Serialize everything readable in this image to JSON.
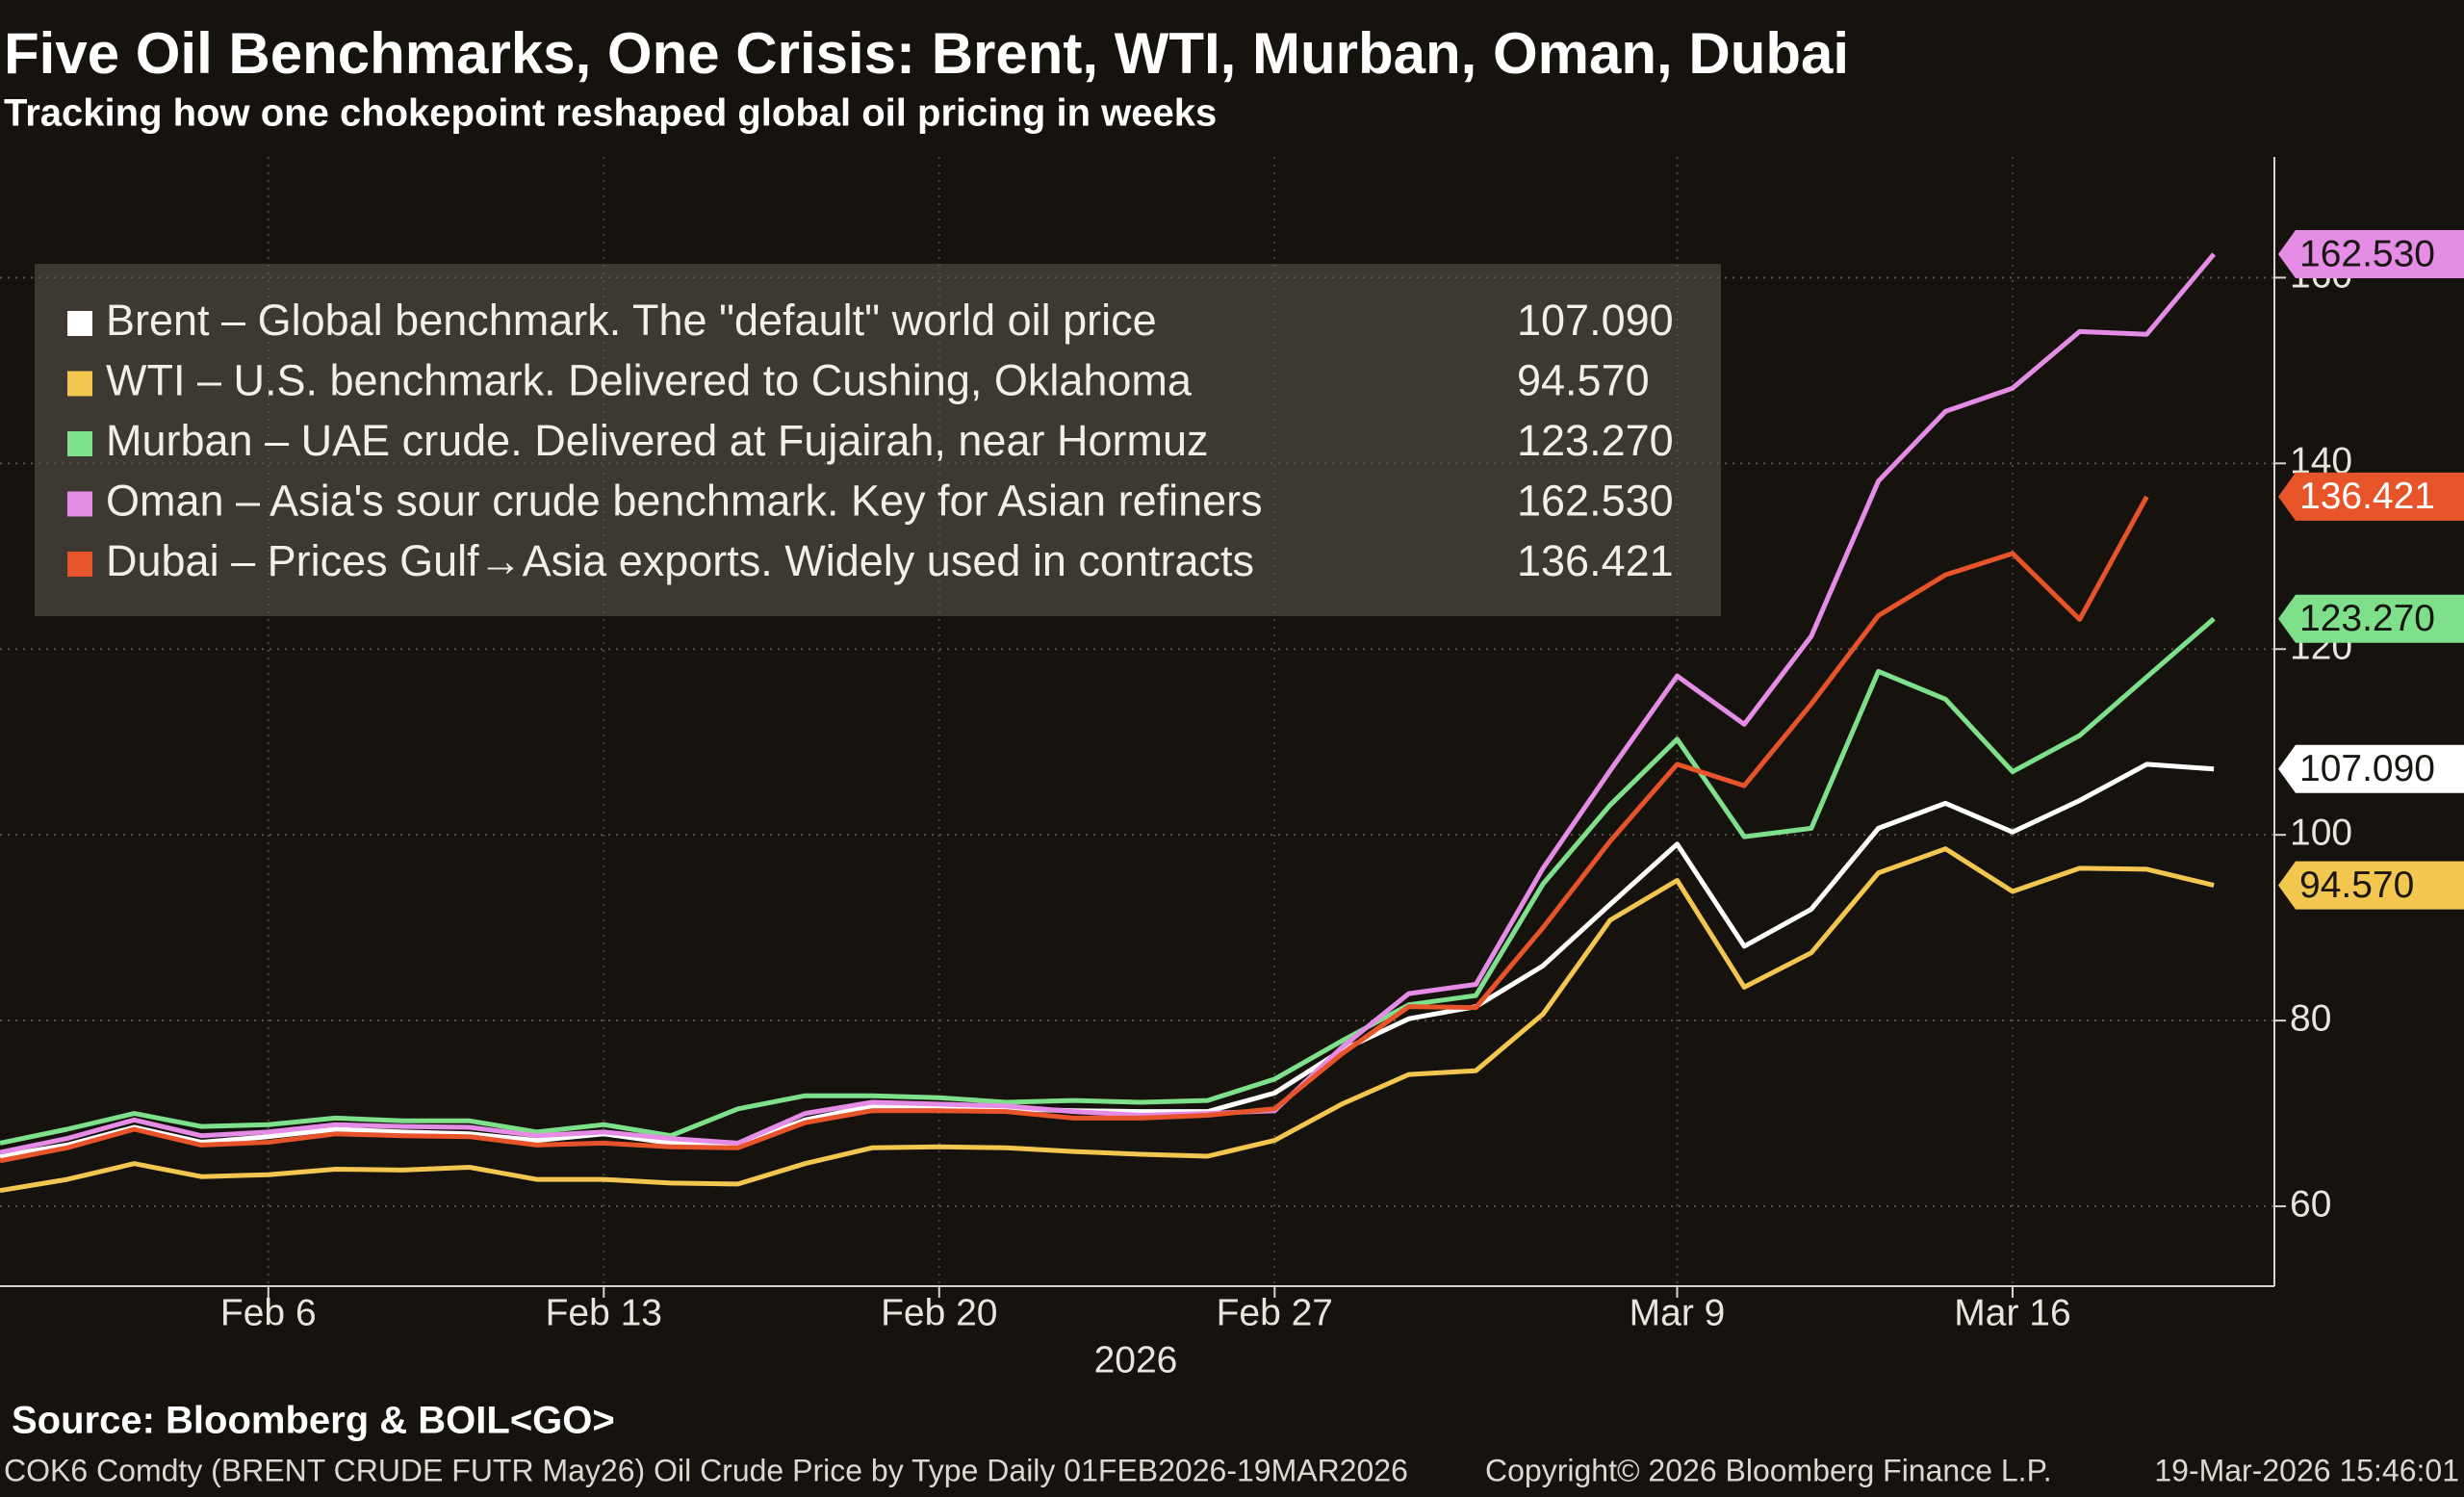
{
  "chart_data": {
    "type": "line",
    "title": "Five Oil Benchmarks, One Crisis: Brent, WTI, Murban, Oman, Dubai",
    "subtitle": "Tracking how one chokepoint reshaped global oil pricing in weeks",
    "xlabel": "2026",
    "source": "Source: Bloomberg & BOIL<GO>",
    "footer": "COK6 Comdty (BRENT CRUDE FUTR  May26) Oil Crude Price by Type Daily 01FEB2026-19MAR2026",
    "copyright": "Copyright© 2026 Bloomberg Finance L.P.",
    "timestamp": "19-Mar-2026 15:46:01",
    "x": [
      "2026-02-02",
      "2026-02-03",
      "2026-02-04",
      "2026-02-05",
      "2026-02-06",
      "2026-02-09",
      "2026-02-10",
      "2026-02-11",
      "2026-02-12",
      "2026-02-13",
      "2026-02-16",
      "2026-02-17",
      "2026-02-18",
      "2026-02-19",
      "2026-02-20",
      "2026-02-23",
      "2026-02-24",
      "2026-02-25",
      "2026-02-26",
      "2026-02-27",
      "2026-03-02",
      "2026-03-03",
      "2026-03-04",
      "2026-03-05",
      "2026-03-06",
      "2026-03-09",
      "2026-03-10",
      "2026-03-11",
      "2026-03-12",
      "2026-03-13",
      "2026-03-16",
      "2026-03-17",
      "2026-03-18",
      "2026-03-19"
    ],
    "xticks": [
      {
        "value": "2026-02-06",
        "label": "Feb 6"
      },
      {
        "value": "2026-02-13",
        "label": "Feb 13"
      },
      {
        "value": "2026-02-20",
        "label": "Feb 20"
      },
      {
        "value": "2026-02-27",
        "label": "Feb 27"
      },
      {
        "value": "2026-03-09",
        "label": "Mar 9"
      },
      {
        "value": "2026-03-16",
        "label": "Mar 16"
      }
    ],
    "ylim": [
      51.4,
      173
    ],
    "yticks": [
      60,
      80,
      100,
      120,
      140,
      160
    ],
    "grid": true,
    "legend": "upper left",
    "series": [
      {
        "name": "Brent – Global benchmark. The \"default\" world oil price",
        "color": "#ffffff",
        "values": [
          65.4,
          66.6,
          68.5,
          66.9,
          67.5,
          68.3,
          68.0,
          67.8,
          67.1,
          67.8,
          66.8,
          66.6,
          69.3,
          70.8,
          70.8,
          70.5,
          70.3,
          70.2,
          70.2,
          72.2,
          76.8,
          80.2,
          81.5,
          85.9,
          92.5,
          99.0,
          88.0,
          92.0,
          100.7,
          103.4,
          100.3,
          103.7,
          107.6,
          107.09
        ],
        "value_labels": [
          null,
          null,
          null,
          null,
          null,
          null,
          null,
          null,
          null,
          null,
          null,
          null,
          null,
          null,
          null,
          null,
          null,
          null,
          null,
          null,
          null,
          null,
          null,
          null,
          null,
          null,
          null,
          null,
          null,
          null,
          null,
          null,
          null,
          "107.090"
        ]
      },
      {
        "name": "WTI – U.S. benchmark. Delivered to Cushing, Oklahoma",
        "color": "#f3c74f",
        "values": [
          61.7,
          62.9,
          64.6,
          63.2,
          63.4,
          64.0,
          63.9,
          64.2,
          62.9,
          62.9,
          62.5,
          62.4,
          64.6,
          66.3,
          66.4,
          66.3,
          65.9,
          65.6,
          65.4,
          67.1,
          71.0,
          74.2,
          74.6,
          80.7,
          90.8,
          95.1,
          83.6,
          87.3,
          95.9,
          98.5,
          93.9,
          96.4,
          96.3,
          94.57
        ],
        "value_labels": [
          null,
          null,
          null,
          null,
          null,
          null,
          null,
          null,
          null,
          null,
          null,
          null,
          null,
          null,
          null,
          null,
          null,
          null,
          null,
          null,
          null,
          null,
          null,
          null,
          null,
          null,
          null,
          null,
          null,
          null,
          null,
          null,
          null,
          "94.570"
        ]
      },
      {
        "name": "Murban – UAE crude. Delivered at Fujairah, near Hormuz",
        "color": "#7ee08a",
        "values": [
          66.8,
          68.3,
          70.0,
          68.6,
          68.8,
          69.5,
          69.2,
          69.2,
          68.0,
          68.8,
          67.6,
          70.5,
          71.9,
          71.9,
          71.7,
          71.2,
          71.4,
          71.2,
          71.4,
          73.7,
          77.8,
          81.7,
          82.7,
          94.7,
          103.2,
          110.3,
          99.8,
          100.7,
          117.6,
          114.6,
          106.8,
          110.7,
          117.0,
          123.27
        ],
        "value_labels": [
          null,
          null,
          null,
          null,
          null,
          null,
          null,
          null,
          null,
          null,
          null,
          null,
          null,
          null,
          null,
          null,
          null,
          null,
          null,
          null,
          null,
          null,
          null,
          null,
          null,
          null,
          null,
          null,
          null,
          null,
          null,
          null,
          null,
          "123.270"
        ]
      },
      {
        "name": "Oman – Asia's sour crude benchmark. Key for Asian refiners",
        "color": "#e58ce6",
        "values": [
          65.8,
          67.3,
          69.3,
          67.6,
          68.0,
          68.8,
          68.6,
          68.5,
          67.6,
          68.0,
          67.3,
          66.8,
          70.0,
          71.2,
          71.0,
          70.8,
          70.2,
          69.8,
          70.0,
          70.3,
          77.1,
          82.9,
          83.9,
          96.4,
          106.9,
          117.1,
          111.9,
          121.4,
          138.1,
          145.6,
          148.1,
          154.2,
          153.9,
          162.53
        ],
        "value_labels": [
          null,
          null,
          null,
          null,
          null,
          null,
          null,
          null,
          null,
          null,
          null,
          null,
          null,
          null,
          null,
          null,
          null,
          null,
          null,
          null,
          null,
          null,
          null,
          null,
          null,
          null,
          null,
          null,
          null,
          null,
          null,
          null,
          null,
          "162.530"
        ]
      },
      {
        "name": "Dubai – Prices Gulf→Asia exports. Widely used in contracts",
        "color": "#e8542a",
        "values": [
          64.9,
          66.3,
          68.3,
          66.6,
          66.9,
          67.8,
          67.6,
          67.5,
          66.6,
          66.8,
          66.4,
          66.3,
          69.0,
          70.3,
          70.3,
          70.2,
          69.5,
          69.5,
          69.8,
          70.5,
          76.4,
          81.5,
          81.4,
          90.0,
          99.3,
          107.6,
          105.3,
          114.1,
          123.6,
          128.0,
          130.3,
          123.2,
          136.421,
          null
        ],
        "value_labels": [
          null,
          null,
          null,
          null,
          null,
          null,
          null,
          null,
          null,
          null,
          null,
          null,
          null,
          null,
          null,
          null,
          null,
          null,
          null,
          null,
          null,
          null,
          null,
          null,
          null,
          null,
          null,
          null,
          null,
          null,
          null,
          null,
          "136.421",
          null
        ]
      }
    ]
  }
}
